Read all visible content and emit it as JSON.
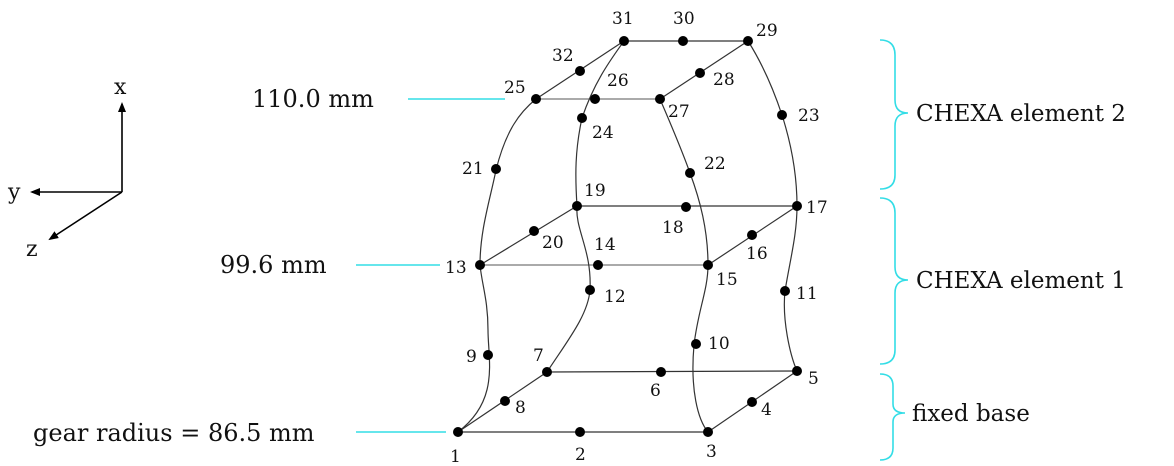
{
  "axes": {
    "x": "x",
    "y": "y",
    "z": "z"
  },
  "dimension_labels": {
    "top": "110.0 mm",
    "middle": "99.6 mm",
    "bottom": "gear radius = 86.5 mm"
  },
  "brace_labels": {
    "element2": "CHEXA element 2",
    "element1": "CHEXA element 1",
    "base": "fixed base"
  },
  "nodes": [
    "1",
    "2",
    "3",
    "4",
    "5",
    "6",
    "7",
    "8",
    "9",
    "10",
    "11",
    "12",
    "13",
    "14",
    "15",
    "16",
    "17",
    "18",
    "19",
    "20",
    "21",
    "22",
    "23",
    "24",
    "25",
    "26",
    "27",
    "28",
    "29",
    "30",
    "31",
    "32"
  ],
  "colors": {
    "leader": "#33dde6",
    "edge": "#333333",
    "node": "#000000"
  }
}
